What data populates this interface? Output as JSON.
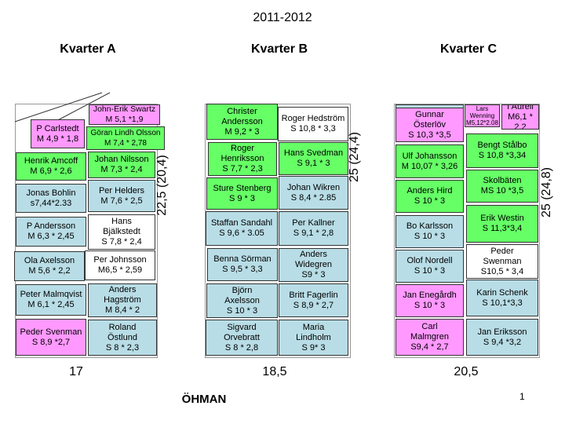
{
  "title": "2011-2012",
  "quarters": [
    {
      "heading": "Kvarter A",
      "total": "17",
      "side_label": "22,5 (20,4)"
    },
    {
      "heading": "Kvarter B",
      "total": "18,5",
      "side_label": "25 (24,4)"
    },
    {
      "heading": "Kvarter C",
      "total": "20,5",
      "side_label": "25 (24,8)"
    }
  ],
  "boxes": {
    "a1": "John-Erik Swartz\nM 5,1 *1,9",
    "a2": "P Carlstedt\nM 4,9 * 1,8",
    "a3": "Göran Lindh Olsson\nM 7,4 * 2,78",
    "a4": "Henrik Amcoff\nM 6,9 * 2,6",
    "a5": "Johan Nilsson\nM 7,3 * 2,4",
    "a6": "Jonas Bohlin\ns7,44*2.33",
    "a7": "Per Helders\nM 7,6 * 2,5",
    "a8": "P Andersson\nM 6,3 * 2,45",
    "a9": "Hans\nBjälkstedt\nS 7,8 * 2,4",
    "a10": "Ola Axelsson\nM 5,6  * 2,2",
    "a11": "Per Johnsson\nM6,5 * 2,59",
    "a12": "Peter Malmqvist\nM 6,1 * 2,45",
    "a13": "Anders\nHagström\nM 8,4 * 2",
    "a14": "Peder Svenman\nS 8,9 *2,7",
    "a15": "Roland\nÖstlund\nS 8 * 2,3",
    "b1": "Christer\nAndersson\nM 9,2 * 3",
    "b2": "Roger Hedström\nS 10,8 * 3,3",
    "b3": "Roger\nHenriksson\nS 7,7 * 2,3",
    "b4": "Hans Svedman\nS 9,1 * 3",
    "b5": "Sture Stenberg\nS 9 * 3",
    "b6": "Johan Wikren\nS 8,4 * 2.85",
    "b7": "Staffan  Sandahl\nS 9,6 * 3.05",
    "b8": "Per Kallner\nS 9,1 * 2,8",
    "b9": "Benna Sörman\nS 9,5 * 3,3",
    "b10": "Anders\nWidegren\nS9 * 3",
    "b11": "Björn\nAxelsson\nS 10 * 3",
    "b12": "Britt Fagerlin\nS 8,9 * 2,7",
    "b13": "Sigvard\nOrvebratt\nS 8 * 2,8",
    "b14": "Maria\nLindholm\nS 9* 3",
    "c1": "Gunnar\nÖsterlöv\nS 10,3 *3,5",
    "c2": "Lars\nWenning\nM5,12*2.08",
    "c3": "I Aurell\nM6,1 * 2,2",
    "c4": "Bengt Stålbo\nS 10,8 *3,34",
    "c5": "Ulf Johansson\nM 10,07 * 3,26",
    "c6": "Skolbäten\nMS 10 *3,5",
    "c7": "Anders Hird\nS 10 * 3",
    "c8": "Erik Westin\nS 11,3*3,4",
    "c9": "Bo Karlsson\nS 10 * 3",
    "c10": "Peder\nSwenman\nS10,5 * 3,4",
    "c11": "Olof Nordell\nS 10 * 3",
    "c12": "Karin Schenk\nS 10,1*3,3",
    "c13": "Jan Enegårdh\nS 10 * 3",
    "c14": "Carl\nMalmgren\nS9,4 * 2,7",
    "c15": "Jan Eriksson\nS 9,4 *3,2"
  },
  "footer": "ÖHMAN",
  "page_number": "1",
  "colors": {
    "pink": "#ff99ff",
    "green": "#66ff66",
    "blue": "#b8dde6"
  }
}
